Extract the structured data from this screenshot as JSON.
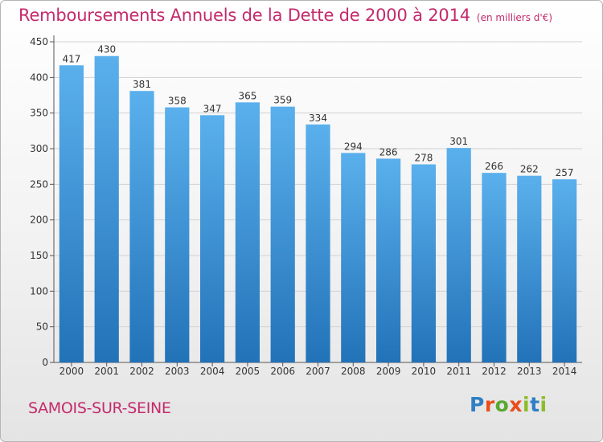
{
  "header": {
    "title": "Remboursements Annuels de la Dette de 2000 à 2014",
    "unit": "(en milliers d'€)"
  },
  "footer": {
    "commune": "SAMOIS-SUR-SEINE",
    "logo_letters": [
      "P",
      "r",
      "o",
      "x",
      "i",
      "t",
      "i"
    ]
  },
  "colors": {
    "title": "#c42a6c",
    "bar_top": "#5ab0ec",
    "bar_bottom": "#2272b8",
    "grid": "#d2d2d2",
    "axis": "#555555",
    "logo": [
      "#2f7fc4",
      "#e94e1b",
      "#5aa833",
      "#e94e1b",
      "#8bbd2a",
      "#2f7fc4",
      "#8bbd2a"
    ]
  },
  "chart_data": {
    "type": "bar",
    "title": "Remboursements Annuels de la Dette de 2000 à 2014",
    "xlabel": "",
    "ylabel": "(en milliers d'€)",
    "categories": [
      "2000",
      "2001",
      "2002",
      "2003",
      "2004",
      "2005",
      "2006",
      "2007",
      "2008",
      "2009",
      "2010",
      "2011",
      "2012",
      "2013",
      "2014"
    ],
    "values": [
      417,
      430,
      381,
      358,
      347,
      365,
      359,
      334,
      294,
      286,
      278,
      301,
      266,
      262,
      257
    ],
    "ylim": [
      0,
      450
    ],
    "yticks": [
      0,
      50,
      100,
      150,
      200,
      250,
      300,
      350,
      400,
      450
    ],
    "grid": true,
    "legend": "none"
  }
}
